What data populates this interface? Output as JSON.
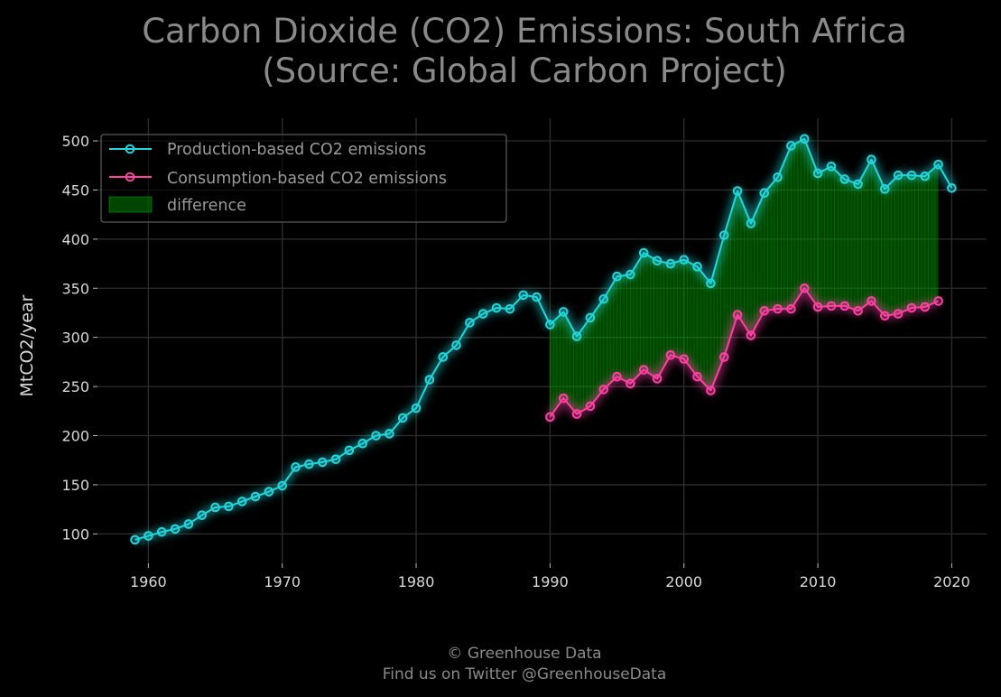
{
  "chart_data": {
    "type": "line",
    "title": [
      "Carbon Dioxide (CO2) Emissions: South Africa",
      "(Source: Global Carbon Project)"
    ],
    "xlabel": "",
    "ylabel": "MtCO2/year",
    "xlim": [
      1956.2,
      2022.6
    ],
    "ylim": [
      70,
      523
    ],
    "xticks": [
      1960,
      1970,
      1980,
      1990,
      2000,
      2010,
      2020
    ],
    "yticks": [
      100,
      150,
      200,
      250,
      300,
      350,
      400,
      450,
      500
    ],
    "grid": true,
    "legend_position": "top-left",
    "series": [
      {
        "name": "Production-based CO2 emissions",
        "color": "#1fd7dc",
        "x": [
          1959,
          1960,
          1961,
          1962,
          1963,
          1964,
          1965,
          1966,
          1967,
          1968,
          1969,
          1970,
          1971,
          1972,
          1973,
          1974,
          1975,
          1976,
          1977,
          1978,
          1979,
          1980,
          1981,
          1982,
          1983,
          1984,
          1985,
          1986,
          1987,
          1988,
          1989,
          1990,
          1991,
          1992,
          1993,
          1994,
          1995,
          1996,
          1997,
          1998,
          1999,
          2000,
          2001,
          2002,
          2003,
          2004,
          2005,
          2006,
          2007,
          2008,
          2009,
          2010,
          2011,
          2012,
          2013,
          2014,
          2015,
          2016,
          2017,
          2018,
          2019,
          2020
        ],
        "values": [
          94,
          98,
          102,
          105,
          110,
          119,
          127,
          128,
          133,
          138,
          143,
          149,
          168,
          171,
          173,
          176,
          185,
          192,
          200,
          202,
          218,
          228,
          257,
          280,
          292,
          315,
          324,
          330,
          329,
          343,
          341,
          313,
          326,
          301,
          320,
          339,
          362,
          364,
          386,
          378,
          375,
          379,
          372,
          355,
          404,
          449,
          416,
          447,
          463,
          495,
          502,
          467,
          474,
          461,
          456,
          481,
          451,
          465,
          465,
          464,
          476,
          452
        ]
      },
      {
        "name": "Consumption-based CO2 emissions",
        "color": "#ff3fa4",
        "x": [
          1990,
          1991,
          1992,
          1993,
          1994,
          1995,
          1996,
          1997,
          1998,
          1999,
          2000,
          2001,
          2002,
          2003,
          2004,
          2005,
          2006,
          2007,
          2008,
          2009,
          2010,
          2011,
          2012,
          2013,
          2014,
          2015,
          2016,
          2017,
          2018,
          2019
        ],
        "values": [
          219,
          238,
          222,
          230,
          247,
          260,
          253,
          267,
          258,
          282,
          278,
          260,
          246,
          280,
          323,
          302,
          327,
          329,
          329,
          350,
          331,
          332,
          332,
          327,
          337,
          322,
          324,
          330,
          331,
          337
        ]
      }
    ],
    "fill": {
      "name": "difference",
      "color": "#00a400",
      "between": [
        "Production-based CO2 emissions",
        "Consumption-based CO2 emissions"
      ],
      "x_range": [
        1990,
        2019
      ]
    }
  },
  "footer": {
    "line1": "© Greenhouse Data",
    "line2": "Find us on Twitter @GreenhouseData"
  }
}
